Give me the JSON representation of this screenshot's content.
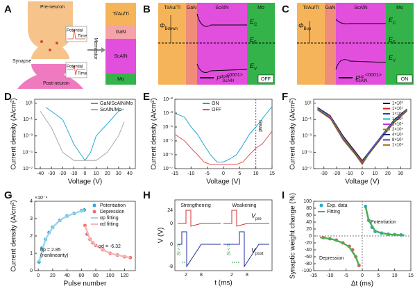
{
  "panel_a": {
    "letter": "A",
    "pre": "Pre-neuron",
    "synapse": "Synapse",
    "post": "Post-neuron",
    "memristor": "Memristor",
    "potential": [
      "Potential",
      "Potential"
    ],
    "time": [
      "Time",
      "Time"
    ],
    "layers": [
      "Ti/Au/Ti",
      "GaN",
      "ScAlN",
      "Mo"
    ]
  },
  "panel_b": {
    "letter": "B",
    "layers": [
      "Ti/Au/Ti",
      "GaN",
      "ScAlN",
      "Mo"
    ],
    "phi": "Φ",
    "phi_sub": "Bdown",
    "bands": [
      {
        "main": "E",
        "sub": "C"
      },
      {
        "main": "E",
        "sub": "F"
      },
      {
        "main": "E",
        "sub": "V"
      }
    ],
    "direction": "<0001>",
    "pol": "P",
    "pol_sup": "down",
    "pol_sub": "ScAlN",
    "state": "OFF"
  },
  "panel_c": {
    "letter": "C",
    "layers": [
      "Ti/Au/Ti",
      "GaN",
      "ScAlN",
      "Mo"
    ],
    "phi": "Φ",
    "phi_sub": "Bup",
    "bands": [
      {
        "main": "E",
        "sub": "C"
      },
      {
        "main": "E",
        "sub": "F"
      },
      {
        "main": "E",
        "sub": "V"
      }
    ],
    "direction": "<0001>",
    "pol": "P",
    "pol_sup": "up",
    "pol_sub": "ScAlN",
    "state": "ON"
  },
  "panel_h": {
    "letter": "H",
    "strengthening": "Strengthening",
    "weakening": "Weakening",
    "vpre": "V",
    "vpre_sub": "pre",
    "vpost": "V",
    "vpost_sub": "post",
    "dt_pos": "Δt > 0",
    "dt_neg": "Δt < 0",
    "ylabel": "V (V)",
    "xlabel": "t (ms)",
    "yticks": [
      "24",
      "0",
      "0",
      "-8"
    ],
    "xticks": [
      "2",
      "8",
      "2",
      "8"
    ]
  },
  "chart_data": [
    {
      "type": "line",
      "letter": "D",
      "xlabel": "Voltage (V)",
      "ylabel": "Current density (A/cm²)",
      "log_y": true,
      "legend": "upper right",
      "xlim": [
        -45,
        45
      ],
      "xticks": [
        -40,
        -30,
        -20,
        -10,
        0,
        10,
        20,
        30,
        40
      ],
      "ylim": [
        1e-07,
        30
      ],
      "yticks": [
        {
          "value": 1e-07,
          "label": "10⁻⁷"
        },
        {
          "value": 1e-05,
          "label": "10⁻⁵"
        },
        {
          "value": 0.001,
          "label": "10⁻³"
        },
        {
          "value": 0.1,
          "label": "10⁻¹"
        },
        {
          "value": 10,
          "label": "10¹"
        }
      ],
      "series": [
        {
          "name": "GaN/ScAlN/Mo",
          "color": "#29a9d8",
          "x": [
            -35,
            -30,
            -20,
            -10,
            -5,
            0,
            5,
            10,
            20,
            30,
            35
          ],
          "values": [
            3,
            1,
            0.1,
            0.0001,
            1e-05,
            1e-06,
            1e-05,
            0.001,
            0.03,
            1,
            2
          ]
        },
        {
          "name": "ScAlN/Mo",
          "color": "#aaaaaa",
          "x": [
            -40,
            -35,
            -30,
            -20,
            -10,
            0,
            10,
            20,
            30,
            35
          ],
          "values": [
            1,
            0.1,
            0.01,
            1e-05,
            1e-06,
            1e-06,
            1e-06,
            1e-05,
            0.001,
            0.05
          ]
        }
      ]
    },
    {
      "type": "line",
      "letter": "E",
      "xlabel": "Voltage (V)",
      "ylabel": "Current density (A/cm²)",
      "log_y": true,
      "legend": "upper center",
      "xlim": [
        -15,
        15
      ],
      "xticks": [
        -15,
        -10,
        -5,
        0,
        5,
        10,
        15
      ],
      "ylim": [
        1e-07,
        0.01
      ],
      "yticks": [
        {
          "value": 1e-07,
          "label": "10⁻⁷"
        },
        {
          "value": 1e-06,
          "label": "10⁻⁶"
        },
        {
          "value": 1e-05,
          "label": "10⁻⁵"
        },
        {
          "value": 0.0001,
          "label": "10⁻⁴"
        },
        {
          "value": 0.001,
          "label": "10⁻³"
        },
        {
          "value": 0.01,
          "label": "10⁻²"
        }
      ],
      "read_voltage": 10,
      "read_label": "Read",
      "x": [
        -15,
        -12,
        -10,
        -8,
        -6,
        -4,
        -2,
        0,
        2,
        4,
        6,
        8,
        10,
        12,
        15
      ],
      "series": [
        {
          "name": "ON",
          "color": "#1fa3c9",
          "values": [
            0.001,
            0.0005,
            0.0001,
            3e-05,
            5e-06,
            1e-06,
            3e-07,
            3e-07,
            5e-07,
            1e-06,
            5e-06,
            3e-05,
            0.0001,
            0.0004,
            0.003
          ]
        },
        {
          "name": "OFF",
          "color": "#e8505a",
          "values": [
            3e-05,
            1e-05,
            3e-06,
            1e-06,
            3e-07,
            2e-07,
            2e-07,
            2e-07,
            2e-07,
            2e-07,
            3e-07,
            1e-06,
            3e-06,
            6e-06,
            5e-05
          ]
        }
      ]
    },
    {
      "type": "line",
      "letter": "F",
      "xlabel": "Voltage (V)",
      "ylabel": "Current density (A/cm²)",
      "log_y": true,
      "legend": "upper right",
      "xlim": [
        -38,
        38
      ],
      "xticks": [
        -30,
        -20,
        -10,
        0,
        10,
        20,
        30
      ],
      "ylim": [
        1e-07,
        30
      ],
      "yticks": [
        {
          "value": 1e-07,
          "label": "10⁻⁷"
        },
        {
          "value": 1e-05,
          "label": "10⁻⁵"
        },
        {
          "value": 0.001,
          "label": "10⁻³"
        },
        {
          "value": 0.1,
          "label": "10⁻¹"
        },
        {
          "value": 10,
          "label": "10¹"
        }
      ],
      "x": [
        -35,
        -25,
        -15,
        -5,
        0,
        5,
        15,
        25,
        35
      ],
      "series": [
        {
          "name": "1×10⁰",
          "color": "#000000",
          "values": [
            3,
            0.3,
            0.001,
            1e-05,
            1e-06,
            1e-05,
            0.001,
            0.1,
            2
          ]
        },
        {
          "name": "1×10¹",
          "color": "#e41a1c",
          "values": [
            2.5,
            0.25,
            0.0008,
            8e-06,
            8e-07,
            9e-06,
            0.0009,
            0.09,
            1.8
          ]
        },
        {
          "name": "1×10²",
          "color": "#1f3fd1",
          "values": [
            2.8,
            0.2,
            0.0007,
            7e-06,
            7e-07,
            1e-05,
            0.001,
            0.08,
            1.6
          ]
        },
        {
          "name": "1×10³",
          "color": "#19b5c9",
          "values": [
            2.2,
            0.22,
            0.0006,
            6e-06,
            6e-07,
            8e-06,
            0.0008,
            0.07,
            1.5
          ]
        },
        {
          "name": "1×10⁴",
          "color": "#d12bd1",
          "values": [
            2,
            0.18,
            0.0005,
            5e-06,
            5e-07,
            7e-06,
            0.0007,
            0.06,
            1.4
          ]
        },
        {
          "name": "2×10⁴",
          "color": "#8a8a00",
          "values": [
            1.8,
            0.16,
            0.0005,
            6e-06,
            6e-07,
            6e-06,
            0.0006,
            0.06,
            1.3
          ]
        },
        {
          "name": "4×10⁴",
          "color": "#1c2a80",
          "values": [
            1.6,
            0.15,
            0.0004,
            5e-06,
            4e-07,
            6e-06,
            0.0006,
            0.05,
            1.2
          ]
        },
        {
          "name": "8×10⁴",
          "color": "#7a2ea0",
          "values": [
            1.5,
            0.14,
            0.0004,
            4e-06,
            4e-07,
            5e-06,
            0.0005,
            0.05,
            1.1
          ]
        },
        {
          "name": "1×10⁵",
          "color": "#a08020",
          "values": [
            1.4,
            0.12,
            0.0003,
            4e-06,
            3e-07,
            5e-06,
            0.0005,
            0.04,
            1
          ]
        }
      ]
    },
    {
      "type": "scatter",
      "letter": "G",
      "xlabel": "Pulse number",
      "ylabel": "Current density (A/cm²)",
      "multiplier": "×10⁻⁴",
      "legend": "upper right",
      "xlim": [
        -5,
        135
      ],
      "xticks": [
        0,
        20,
        40,
        60,
        80,
        100,
        120
      ],
      "ylim": [
        0,
        4
      ],
      "yticks": [
        0,
        1,
        2,
        3,
        4
      ],
      "annotations": [
        "αp = 2.85",
        "(nonlinearity)",
        "αd = -6.32"
      ],
      "series": [
        {
          "name": "Potentiation",
          "color": "#2aa8d8",
          "kind": "points",
          "x": [
            1,
            5,
            10,
            15,
            20,
            30,
            40,
            50,
            60,
            64
          ],
          "values": [
            0.5,
            1.3,
            1.8,
            2.2,
            2.5,
            2.9,
            3.15,
            3.3,
            3.45,
            3.5
          ]
        },
        {
          "name": "Depression",
          "color": "#ec6a6a",
          "kind": "points",
          "x": [
            65,
            68,
            72,
            76,
            80,
            90,
            100,
            110,
            120,
            128
          ],
          "values": [
            2.6,
            2.1,
            1.8,
            1.6,
            1.45,
            1.2,
            1,
            0.9,
            0.8,
            0.75
          ]
        },
        {
          "name": "αp fitting",
          "color": "#9fd3ec",
          "kind": "line",
          "x": [
            1,
            10,
            20,
            30,
            40,
            50,
            64
          ],
          "values": [
            0.5,
            1.8,
            2.5,
            2.9,
            3.15,
            3.3,
            3.5
          ]
        },
        {
          "name": "αd fitting",
          "color": "#f2b8b8",
          "kind": "line",
          "x": [
            65,
            72,
            80,
            90,
            100,
            110,
            128
          ],
          "values": [
            2.6,
            1.8,
            1.45,
            1.2,
            1,
            0.9,
            0.75
          ]
        }
      ]
    },
    {
      "type": "scatter",
      "letter": "I",
      "xlabel": "Δt (ms)",
      "ylabel": "Synaptic weight change (%)",
      "legend": "upper left",
      "xlim": [
        -15,
        15
      ],
      "xticks": [
        -15,
        -10,
        -5,
        0,
        5,
        10,
        15
      ],
      "ylim": [
        -100,
        100
      ],
      "yticks": [
        -100,
        -80,
        -60,
        -40,
        -20,
        0,
        20,
        40,
        60,
        80,
        100
      ],
      "annotations": [
        "Potentiation",
        "Depression"
      ],
      "colors": [
        "#e8544f",
        "#2aa8c9"
      ],
      "series": [
        {
          "name": "Exp. data",
          "kind": "points",
          "x": [
            -12,
            -10,
            -8,
            -6,
            -4,
            -3,
            -2,
            -1,
            1,
            2,
            3,
            4,
            6,
            8,
            10,
            12
          ],
          "values": [
            -5,
            -8,
            -12,
            -20,
            -30,
            -40,
            -60,
            -85,
            85,
            45,
            25,
            13,
            8,
            5,
            4,
            3
          ]
        },
        {
          "name": "Fitting",
          "color": "#4caf50",
          "kind": "line",
          "x": [
            -13,
            -9,
            -6,
            -4,
            -2,
            -1,
            null,
            1,
            2,
            4,
            6,
            9,
            13
          ],
          "values": [
            -4,
            -10,
            -20,
            -32,
            -60,
            -85,
            null,
            85,
            45,
            14,
            8,
            4,
            2
          ]
        }
      ]
    }
  ]
}
